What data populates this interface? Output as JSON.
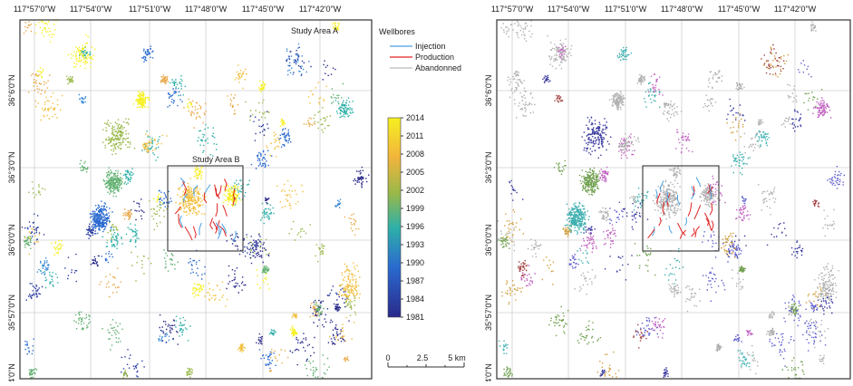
{
  "maps": [
    {
      "x_labels": [
        "117°57'0\"W",
        "117°54'0\"W",
        "117°51'0\"W",
        "117°48'0\"W",
        "117°45'0\"W",
        "117°42'0\"W"
      ],
      "y_labels": [
        "36°6'0\"N",
        "36°3'0\"N",
        "36°0'0\"N",
        "35°57'0\"N",
        "4'0\"N"
      ],
      "area_labels": [
        "Study Area A",
        "Study Area B"
      ]
    },
    {
      "x_labels": [
        "117°57'0\"W",
        "117°54'0\"W",
        "117°51'0\"W",
        "117°48'0\"W",
        "117°45'0\"W",
        "117°42'0\"W"
      ],
      "y_labels": [
        "36°6'0\"N",
        "36°3'0\"N",
        "36°0'0\"N",
        "35°57'0\"N",
        "4'0\"N"
      ]
    }
  ],
  "legend": {
    "title": "Wellbores",
    "items": [
      "Injection",
      "Production",
      "Abandonned"
    ]
  },
  "colorbar": {
    "ticks": [
      2014,
      2011,
      2008,
      2005,
      2002,
      1999,
      1996,
      1993,
      1990,
      1987,
      1984,
      1981
    ]
  },
  "scale_bar": {
    "labels": [
      "0",
      "2.5",
      "5 km"
    ]
  }
}
